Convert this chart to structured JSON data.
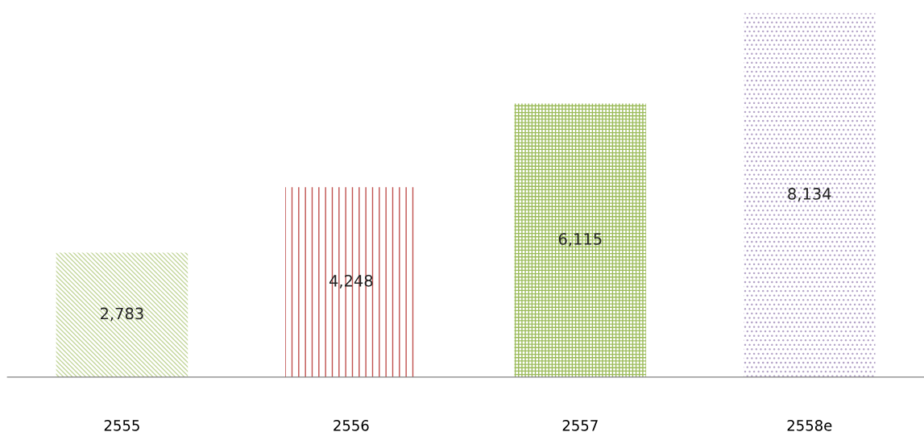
{
  "chart_data": {
    "type": "bar",
    "categories": [
      "2555",
      "2556",
      "2557",
      "2558e"
    ],
    "values": [
      2783,
      4248,
      6115,
      8134
    ],
    "colors": [
      "#c3d69b",
      "#c0504d",
      "#9bbb59",
      "#b3a2c7"
    ],
    "value_labels": [
      "2,783",
      "4,248",
      "6,115",
      "8,134"
    ]
  }
}
